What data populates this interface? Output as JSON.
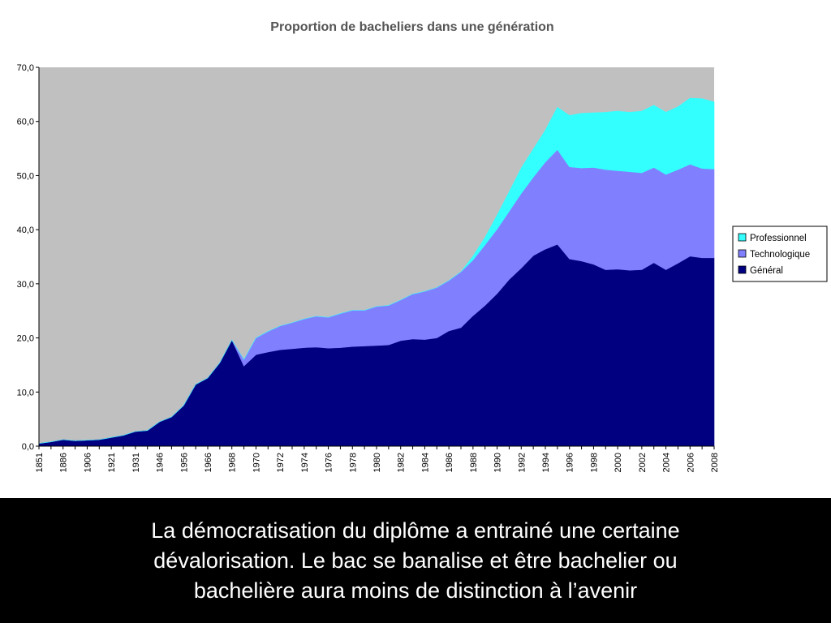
{
  "chart_data": {
    "type": "area",
    "stacked": true,
    "title": "Proportion de bacheliers dans une génération",
    "xlabel": "",
    "ylabel": "",
    "ylim": [
      0,
      70
    ],
    "y_ticks": [
      "0,0",
      "10,0",
      "20,0",
      "30,0",
      "40,0",
      "50,0",
      "60,0",
      "70,0"
    ],
    "categories": [
      "1851",
      "1881",
      "1886",
      "1891",
      "1906",
      "1911",
      "1921",
      "1926",
      "1931",
      "1936",
      "1946",
      "1951",
      "1956",
      "1961",
      "1966",
      "1967",
      "1968",
      "1969",
      "1970",
      "1971",
      "1972",
      "1973",
      "1974",
      "1975",
      "1976",
      "1977",
      "1978",
      "1979",
      "1980",
      "1981",
      "1982",
      "1983",
      "1984",
      "1985",
      "1986",
      "1987",
      "1988",
      "1989",
      "1990",
      "1991",
      "1992",
      "1993",
      "1994",
      "1995",
      "1996",
      "1997",
      "1998",
      "1999",
      "2000",
      "2001",
      "2002",
      "2003",
      "2004",
      "2005",
      "2006",
      "2007",
      "2008"
    ],
    "x_tick_labels": [
      "1851",
      "1886",
      "1906",
      "1921",
      "1931",
      "1946",
      "1956",
      "1966",
      "1968",
      "1970",
      "1972",
      "1974",
      "1976",
      "1978",
      "1980",
      "1982",
      "1984",
      "1986",
      "1988",
      "1990",
      "1992",
      "1994",
      "1996",
      "1998",
      "2000",
      "2002",
      "2004",
      "2006",
      "2008"
    ],
    "series": [
      {
        "name": "Général",
        "color": "#000080",
        "values": [
          0.5,
          0.8,
          1.2,
          1.0,
          1.1,
          1.2,
          1.6,
          2.0,
          2.7,
          2.9,
          4.5,
          5.4,
          7.5,
          11.4,
          12.6,
          15.4,
          19.6,
          14.8,
          16.9,
          17.4,
          17.8,
          18.0,
          18.2,
          18.3,
          18.1,
          18.2,
          18.4,
          18.5,
          18.6,
          18.7,
          19.5,
          19.8,
          19.7,
          20.0,
          21.3,
          21.9,
          24.1,
          26.0,
          28.2,
          30.8,
          32.9,
          35.2,
          36.4,
          37.3,
          34.6,
          34.2,
          33.6,
          32.6,
          32.7,
          32.5,
          32.6,
          33.9,
          32.6,
          33.8,
          35.1,
          34.8,
          34.8
        ]
      },
      {
        "name": "Technologique",
        "color": "#8080ff",
        "values": [
          0,
          0,
          0,
          0,
          0,
          0,
          0,
          0,
          0,
          0,
          0,
          0,
          0,
          0,
          0,
          0,
          0,
          1.2,
          3.1,
          3.8,
          4.4,
          4.8,
          5.3,
          5.7,
          5.7,
          6.3,
          6.7,
          6.6,
          7.2,
          7.3,
          7.5,
          8.3,
          8.9,
          9.3,
          9.3,
          10.3,
          10.3,
          11.2,
          11.9,
          12.6,
          13.8,
          14.5,
          16.1,
          17.5,
          17.0,
          17.2,
          17.9,
          18.5,
          18.2,
          18.2,
          17.9,
          17.6,
          17.6,
          17.3,
          17.0,
          16.5,
          16.4
        ]
      },
      {
        "name": "Professionnel",
        "color": "#33ffff",
        "values": [
          0,
          0,
          0,
          0,
          0,
          0,
          0,
          0,
          0,
          0,
          0,
          0,
          0,
          0,
          0,
          0,
          0,
          0,
          0,
          0,
          0,
          0,
          0,
          0,
          0,
          0,
          0,
          0,
          0,
          0,
          0,
          0,
          0,
          0,
          0,
          0,
          0.7,
          1.4,
          2.6,
          3.6,
          4.7,
          5.2,
          5.9,
          7.8,
          9.5,
          10.1,
          10.1,
          10.6,
          11.0,
          11.0,
          11.4,
          11.5,
          11.5,
          11.6,
          12.2,
          12.9,
          12.4
        ]
      }
    ],
    "legend_position": "right",
    "legend_order": [
      "Professionnel",
      "Technologique",
      "Général"
    ],
    "plot_background": "#c0c0c0",
    "grid": false
  },
  "caption": {
    "line1": "La démocratisation du diplôme a entrainé une certaine",
    "line2": "dévalorisation.  Le bac se banalise et être bachelier ou",
    "line3": "bachelière aura moins de distinction à l’avenir"
  },
  "colors": {
    "slide_background": "#000000",
    "chart_background": "#ffffff",
    "caption_text": "#ffffff"
  }
}
